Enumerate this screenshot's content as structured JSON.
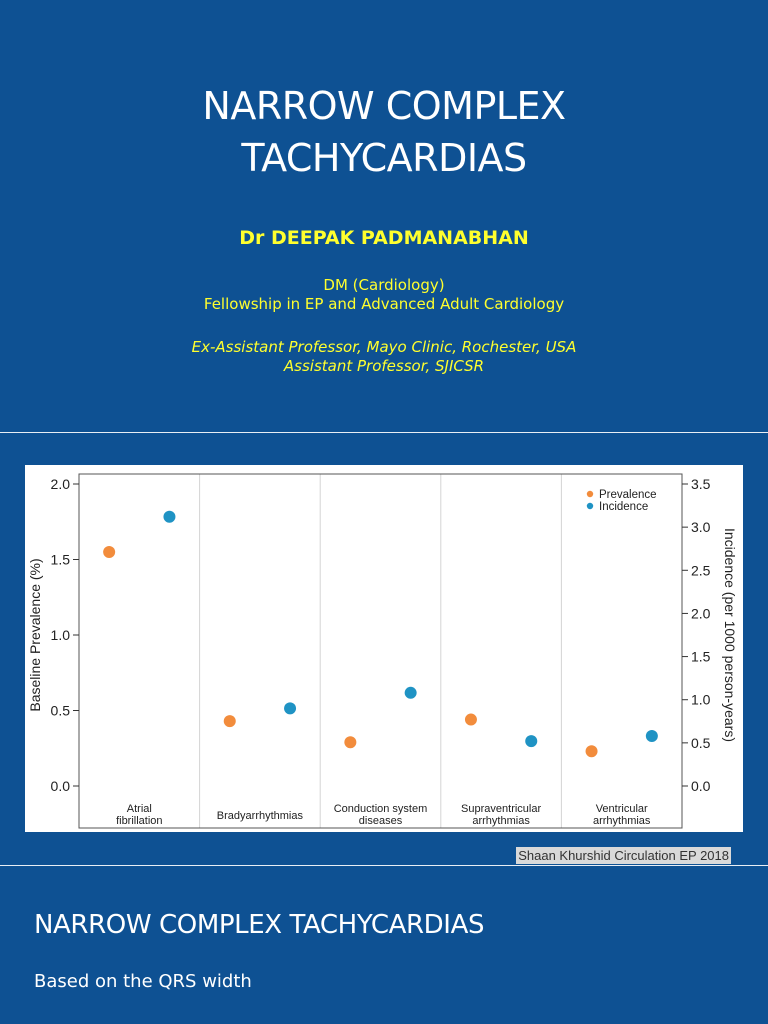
{
  "slide1": {
    "title_line1": "NARROW COMPLEX",
    "title_line2": "TACHYCARDIAS",
    "author": "Dr DEEPAK PADMANABHAN",
    "credentials": [
      "DM (Cardiology)",
      "Fellowship in EP and Advanced Adult Cardiology"
    ],
    "positions": [
      "Ex-Assistant Professor, Mayo Clinic, Rochester, USA",
      "Assistant Professor, SJICSR"
    ]
  },
  "slide2": {
    "citation": "Shaan Khurshid Circulation EP 2018"
  },
  "slide3": {
    "title": "NARROW COMPLEX TACHYCARDIAS",
    "body": "Based on the QRS width"
  },
  "colors": {
    "slide_background": "#0e5193",
    "title_text": "#ffffff",
    "author_text": "#ffff2e",
    "prevalence": "#f28c3c",
    "incidence": "#1f93c4"
  },
  "chart_data": {
    "type": "scatter",
    "categories": [
      "Atrial fibrillation",
      "Bradyarrhythmias",
      "Conduction system diseases",
      "Supraventricular arrhythmias",
      "Ventricular arrhythmias"
    ],
    "category_labels": [
      [
        "Atrial",
        "fibrillation"
      ],
      [
        "Bradyarrhythmias"
      ],
      [
        "Conduction system",
        "diseases"
      ],
      [
        "Supraventricular",
        "arrhythmias"
      ],
      [
        "Ventricular",
        "arrhythmias"
      ]
    ],
    "series": [
      {
        "name": "Prevalence",
        "axis": "left",
        "color": "#f28c3c",
        "values": [
          1.55,
          0.43,
          0.29,
          0.44,
          0.23
        ]
      },
      {
        "name": "Incidence",
        "axis": "right",
        "color": "#1f93c4",
        "values": [
          3.12,
          0.9,
          1.08,
          0.52,
          0.58
        ]
      }
    ],
    "ylabel": "Baseline Prevalence (%)",
    "ylim": [
      0,
      2.0
    ],
    "yticks": [
      "0.0",
      "0.5",
      "1.0",
      "1.5",
      "2.0"
    ],
    "ylabel_right": "Incidence (per 1000 person-years)",
    "ylim_right": [
      0,
      3.5
    ],
    "yticks_right": [
      "0.0",
      "0.5",
      "1.0",
      "1.5",
      "2.0",
      "2.5",
      "3.0",
      "3.5"
    ],
    "grid": false,
    "legend_position": "top-right"
  }
}
